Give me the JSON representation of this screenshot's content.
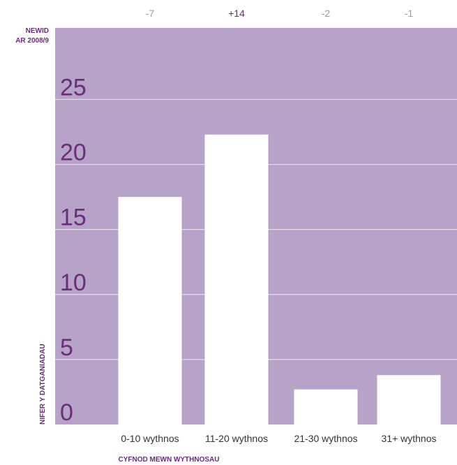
{
  "chart_data": {
    "type": "bar",
    "categories": [
      "0-10 wythnos",
      "11-20 wythnos",
      "21-30 wythnos",
      "31+ wythnos"
    ],
    "values": [
      17.5,
      22.3,
      2.7,
      3.8
    ],
    "changes": [
      "-7",
      "+14",
      "-2",
      "-1"
    ],
    "change_title_line1": "NEWID",
    "change_title_line2": "AR 2008/9",
    "ylabel": "NIFER Y DATGANIADAU",
    "xlabel": "CYFNOD MEWN WYTHNOSAU",
    "yticks": [
      0,
      5,
      10,
      15,
      20,
      25
    ],
    "ylim": [
      0,
      30.5
    ],
    "grid": true,
    "colors": {
      "background": "#b7a2c8",
      "bars": "#ffffff",
      "grid": "#e6dcee",
      "accent": "#6b2c7b",
      "muted": "#9b9b9b"
    }
  }
}
